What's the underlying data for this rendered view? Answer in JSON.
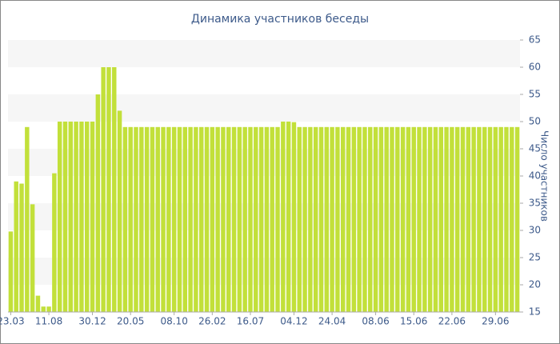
{
  "chart_data": {
    "type": "bar",
    "title": "Динамика участников беседы",
    "y_label": "Число участников",
    "categories": [
      "23.03",
      null,
      null,
      null,
      null,
      null,
      null,
      "11.08",
      null,
      null,
      null,
      null,
      null,
      null,
      null,
      "30.12",
      null,
      null,
      null,
      null,
      null,
      null,
      "20.05",
      null,
      null,
      null,
      null,
      null,
      null,
      null,
      "08.10",
      null,
      null,
      null,
      null,
      null,
      null,
      "26.02",
      null,
      null,
      null,
      null,
      null,
      null,
      "16.07",
      null,
      null,
      null,
      null,
      null,
      null,
      null,
      "04.12",
      null,
      null,
      null,
      null,
      null,
      null,
      "24.04",
      null,
      null,
      null,
      null,
      null,
      null,
      null,
      "08.06",
      null,
      null,
      null,
      null,
      null,
      null,
      "15.06",
      null,
      null,
      null,
      null,
      null,
      null,
      "22.06",
      null,
      null,
      null,
      null,
      null,
      null,
      null,
      "29.06",
      null,
      null,
      null,
      null
    ],
    "values": [
      29.8,
      39,
      38.6,
      49,
      34.8,
      18,
      16,
      16,
      40.5,
      50,
      50,
      50,
      50,
      50,
      50,
      50,
      55,
      60,
      60,
      60,
      52,
      49,
      49,
      49,
      49,
      49,
      49,
      49,
      49,
      49,
      49,
      49,
      49,
      49,
      49,
      49,
      49,
      49,
      49,
      49,
      49,
      49,
      49,
      49,
      49,
      49,
      49,
      49,
      49,
      49,
      50,
      50,
      49.9,
      49,
      49,
      49,
      49,
      49,
      49,
      49,
      49,
      49,
      49,
      49,
      49,
      49,
      49,
      49,
      49,
      49,
      49,
      49,
      49,
      49,
      49,
      49,
      49,
      49,
      49,
      49,
      49,
      49,
      49,
      49,
      49,
      49,
      49,
      49,
      49,
      49,
      49,
      49,
      49,
      49
    ],
    "color": "#c2e03a",
    "ylim": [
      15,
      65
    ],
    "yticks": [
      15,
      20,
      25,
      30,
      35,
      40,
      45,
      50,
      55,
      60,
      65
    ],
    "y_axis_side": "right",
    "grid_bands": true
  }
}
